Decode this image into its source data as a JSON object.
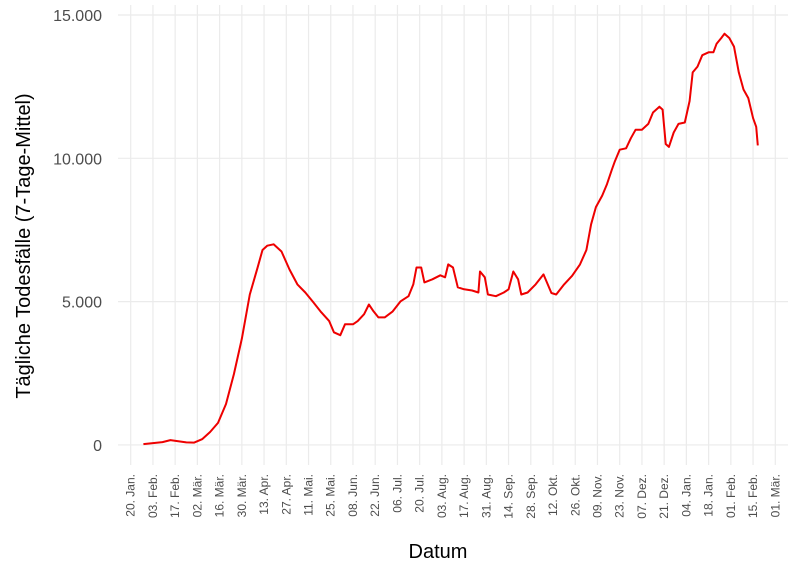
{
  "chart_data": {
    "type": "line",
    "x_label": "Datum",
    "y_label": "Tägliche Todesfälle (7-Tage-Mittel)",
    "xlim": [
      -8,
      414
    ],
    "ylim": [
      -700,
      15350
    ],
    "grid": true,
    "xticks": [
      {
        "value": 0,
        "label": "20. Jan."
      },
      {
        "value": 14,
        "label": "03. Feb."
      },
      {
        "value": 28,
        "label": "17. Feb."
      },
      {
        "value": 42,
        "label": "02. Mär."
      },
      {
        "value": 56,
        "label": "16. Mär."
      },
      {
        "value": 70,
        "label": "30. Mär."
      },
      {
        "value": 84,
        "label": "13. Apr."
      },
      {
        "value": 98,
        "label": "27. Apr."
      },
      {
        "value": 112,
        "label": "11. Mai."
      },
      {
        "value": 126,
        "label": "25. Mai."
      },
      {
        "value": 140,
        "label": "08. Jun."
      },
      {
        "value": 154,
        "label": "22. Jun."
      },
      {
        "value": 168,
        "label": "06. Jul."
      },
      {
        "value": 182,
        "label": "20. Jul."
      },
      {
        "value": 196,
        "label": "03. Aug."
      },
      {
        "value": 210,
        "label": "17. Aug."
      },
      {
        "value": 224,
        "label": "31. Aug."
      },
      {
        "value": 238,
        "label": "14. Sep."
      },
      {
        "value": 252,
        "label": "28. Sep."
      },
      {
        "value": 266,
        "label": "12. Okt."
      },
      {
        "value": 280,
        "label": "26. Okt."
      },
      {
        "value": 294,
        "label": "09. Nov."
      },
      {
        "value": 308,
        "label": "23. Nov."
      },
      {
        "value": 322,
        "label": "07. Dez."
      },
      {
        "value": 336,
        "label": "21. Dez."
      },
      {
        "value": 350,
        "label": "04. Jan."
      },
      {
        "value": 364,
        "label": "18. Jan."
      },
      {
        "value": 378,
        "label": "01. Feb."
      },
      {
        "value": 392,
        "label": "15. Feb."
      },
      {
        "value": 406,
        "label": "01. Mär."
      }
    ],
    "yticks": [
      0,
      {
        "value": 5000,
        "label": "5.000"
      },
      {
        "value": 10000,
        "label": "10.000"
      },
      {
        "value": 15000,
        "label": "15.000"
      }
    ],
    "x": [
      8,
      20,
      25,
      30,
      35,
      40,
      45,
      50,
      55,
      60,
      65,
      70,
      75,
      80,
      83,
      86,
      90,
      95,
      100,
      105,
      110,
      115,
      120,
      125,
      128,
      132,
      135,
      140,
      143,
      147,
      150,
      153,
      156,
      160,
      165,
      170,
      175,
      178,
      180,
      183,
      185,
      190,
      195,
      198,
      200,
      203,
      206,
      210,
      215,
      219,
      220,
      223,
      225,
      230,
      235,
      238,
      241,
      244,
      246,
      250,
      255,
      260,
      265,
      268,
      273,
      278,
      283,
      287,
      290,
      293,
      297,
      300,
      303,
      305,
      308,
      312,
      315,
      318,
      322,
      326,
      329,
      333,
      335,
      337,
      339,
      342,
      345,
      349,
      352,
      354,
      357,
      360,
      364,
      367,
      369,
      372,
      374,
      377,
      380,
      383,
      386,
      389,
      392,
      394,
      395
    ],
    "series": [
      {
        "name": "Tägliche Todesfälle",
        "color": "#ee0000",
        "values": [
          30,
          100,
          170,
          130,
          90,
          80,
          200,
          450,
          770,
          1430,
          2470,
          3700,
          5250,
          6200,
          6800,
          6950,
          7000,
          6750,
          6120,
          5600,
          5320,
          4980,
          4630,
          4320,
          3930,
          3830,
          4210,
          4210,
          4320,
          4560,
          4900,
          4660,
          4450,
          4450,
          4660,
          5010,
          5190,
          5600,
          6190,
          6190,
          5670,
          5780,
          5920,
          5850,
          6300,
          6190,
          5500,
          5430,
          5390,
          5320,
          6050,
          5850,
          5250,
          5190,
          5320,
          5430,
          6050,
          5780,
          5250,
          5320,
          5600,
          5950,
          5300,
          5250,
          5600,
          5900,
          6300,
          6800,
          7700,
          8300,
          8700,
          9100,
          9600,
          9900,
          10300,
          10350,
          10700,
          11000,
          11000,
          11200,
          11600,
          11800,
          11700,
          10500,
          10400,
          10900,
          11200,
          11250,
          12000,
          13000,
          13200,
          13600,
          13700,
          13700,
          14000,
          14200,
          14350,
          14200,
          13900,
          13000,
          12400,
          12100,
          11400,
          11100,
          10450
        ]
      }
    ]
  }
}
